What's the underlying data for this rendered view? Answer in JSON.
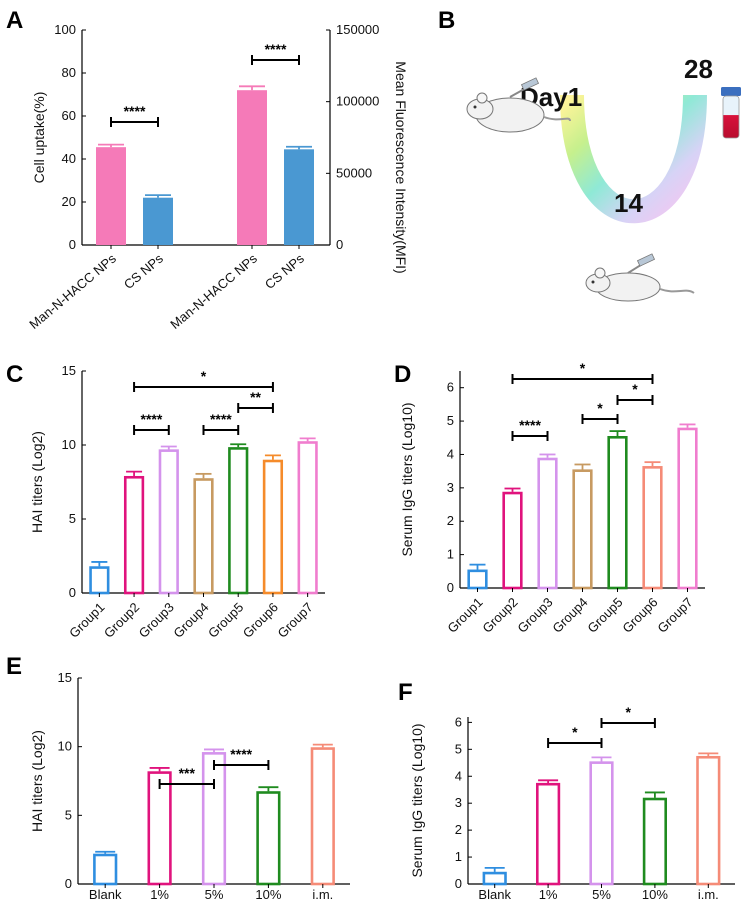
{
  "panel_letters": {
    "A": "A",
    "B": "B",
    "C": "C",
    "D": "D",
    "E": "E",
    "F": "F"
  },
  "chart_data": [
    {
      "id": "A",
      "type": "bar",
      "ylabel": "Cell uptake(%)",
      "ylabel_right": "Mean Fluorescence Intensity(MFI)",
      "ylim": [
        0,
        100
      ],
      "ylim_right": [
        0,
        150000
      ],
      "yticks": [
        0,
        20,
        40,
        60,
        80,
        100
      ],
      "yticks_right": [
        0,
        50000,
        100000,
        150000
      ],
      "categories": [
        "Man-N-HACC NPs",
        "CS NPs",
        "Man-N-HACC NPs",
        "CS NPs"
      ],
      "values": [
        45.5,
        22,
        72,
        44.5
      ],
      "errors": [
        1.2,
        1.2,
        1.8,
        1.2
      ],
      "colors": [
        "#f57ab8",
        "#4a98d2",
        "#f57ab8",
        "#4a98d2"
      ],
      "significance": [
        {
          "from": 0,
          "to": 1,
          "label": "****"
        },
        {
          "from": 2,
          "to": 3,
          "label": "****"
        }
      ]
    },
    {
      "id": "C",
      "type": "bar",
      "ylabel": "HAI titers (Log2)",
      "ylim": [
        0,
        15
      ],
      "yticks": [
        0,
        5,
        10,
        15
      ],
      "categories": [
        "Group1",
        "Group2",
        "Group3",
        "Group4",
        "Group5",
        "Group6",
        "Group7"
      ],
      "values": [
        1.8,
        7.9,
        9.7,
        7.75,
        9.85,
        9.0,
        10.25
      ],
      "errors": [
        0.3,
        0.3,
        0.2,
        0.3,
        0.2,
        0.3,
        0.2
      ],
      "colors": [
        "#2f8ee0",
        "#e0137d",
        "#d493ec",
        "#c79a61",
        "#1f8b1f",
        "#f58b2a",
        "#f07dce"
      ],
      "significance": [
        {
          "from": 1,
          "to": 5,
          "label": "*"
        },
        {
          "from": 4,
          "to": 5,
          "label": "**"
        },
        {
          "from": 1,
          "to": 2,
          "label": "****"
        },
        {
          "from": 3,
          "to": 4,
          "label": "****"
        }
      ]
    },
    {
      "id": "D",
      "type": "bar",
      "ylabel": "Serum IgG titers (Log10)",
      "ylim": [
        0,
        6.5
      ],
      "yticks": [
        0,
        1,
        2,
        3,
        4,
        5,
        6
      ],
      "categories": [
        "Group1",
        "Group2",
        "Group3",
        "Group4",
        "Group5",
        "Group6",
        "Group7"
      ],
      "values": [
        0.55,
        2.88,
        3.9,
        3.55,
        4.55,
        3.65,
        4.8
      ],
      "errors": [
        0.15,
        0.1,
        0.1,
        0.15,
        0.15,
        0.12,
        0.1
      ],
      "colors": [
        "#2f8ee0",
        "#e0137d",
        "#d493ec",
        "#c79a61",
        "#1f8b1f",
        "#f58b77",
        "#f07dce"
      ],
      "significance": [
        {
          "from": 1,
          "to": 5,
          "label": "*"
        },
        {
          "from": 4,
          "to": 5,
          "label": "*"
        },
        {
          "from": 1,
          "to": 2,
          "label": "****"
        },
        {
          "from": 3,
          "to": 4,
          "label": "*"
        }
      ]
    },
    {
      "id": "E",
      "type": "bar",
      "ylabel": "HAI titers (Log2)",
      "ylim": [
        0,
        15
      ],
      "yticks": [
        0,
        5,
        10,
        15
      ],
      "categories": [
        "Blank",
        "1%",
        "5%",
        "10%",
        "i.m."
      ],
      "values": [
        2.2,
        8.2,
        9.6,
        6.75,
        9.95
      ],
      "errors": [
        0.15,
        0.25,
        0.2,
        0.3,
        0.2
      ],
      "colors": [
        "#2f8ee0",
        "#e0137d",
        "#d493ec",
        "#1f8b1f",
        "#f58b77"
      ],
      "significance": [
        {
          "from": 1,
          "to": 2,
          "label": "***"
        },
        {
          "from": 2,
          "to": 3,
          "label": "****"
        }
      ]
    },
    {
      "id": "F",
      "type": "bar",
      "ylabel": "Serum IgG titers (Log10)",
      "ylim": [
        0,
        6.2
      ],
      "yticks": [
        0,
        1,
        2,
        3,
        4,
        5,
        6
      ],
      "categories": [
        "Blank",
        "1%",
        "5%",
        "10%",
        "i.m."
      ],
      "values": [
        0.45,
        3.75,
        4.55,
        3.2,
        4.75
      ],
      "errors": [
        0.15,
        0.1,
        0.15,
        0.2,
        0.1
      ],
      "colors": [
        "#2f8ee0",
        "#e0137d",
        "#d493ec",
        "#1f8b1f",
        "#f58b77"
      ],
      "significance": [
        {
          "from": 1,
          "to": 2,
          "label": "*"
        },
        {
          "from": 2,
          "to": 3,
          "label": "*"
        }
      ]
    }
  ],
  "schedule": {
    "day_start": "Day1",
    "day_mid": "14",
    "day_end": "28"
  }
}
